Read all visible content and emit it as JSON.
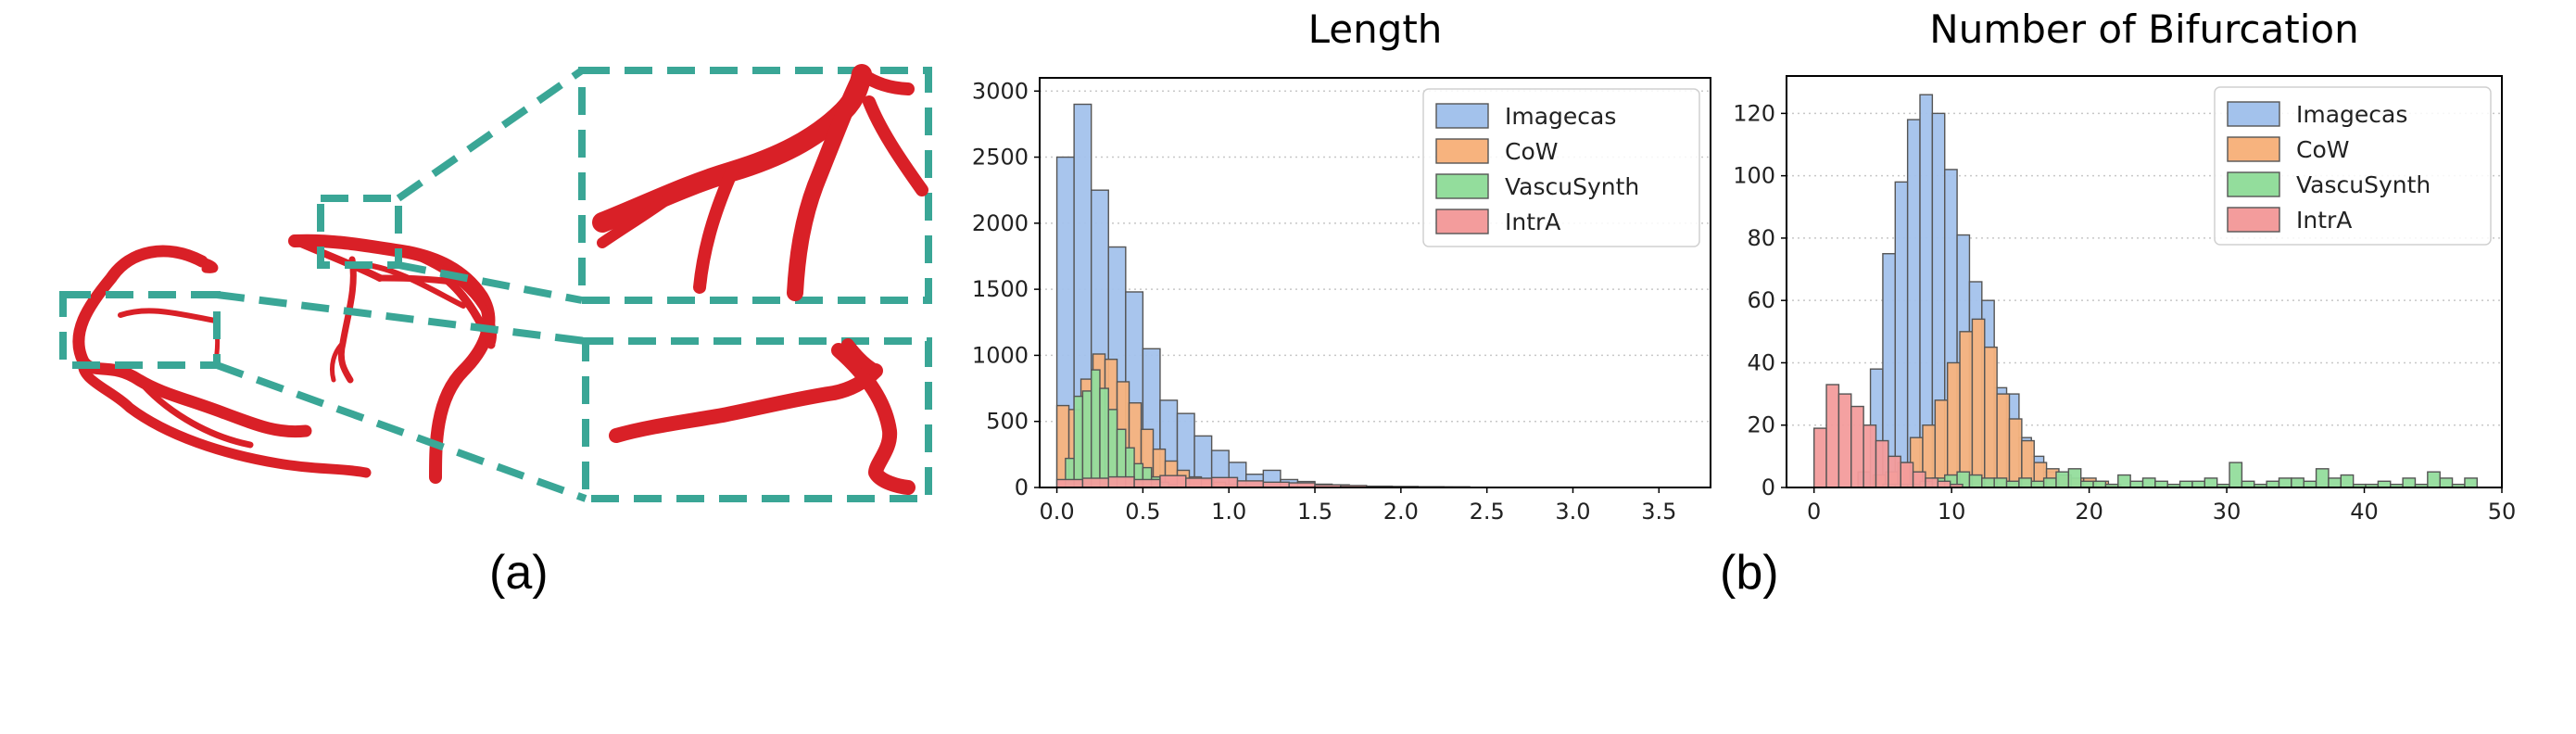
{
  "captions": {
    "a": "(a)",
    "b": "(b)"
  },
  "colors": {
    "vessel": "#d92027",
    "zoom_box": "#3aa696",
    "Imagecas": "#a3c2ec",
    "CoW": "#f7b37e",
    "VascuSynth": "#93dd9c",
    "IntrA": "#f39c9c"
  },
  "chart_data": [
    {
      "type": "histogram",
      "title": "Length",
      "xlim": [
        -0.1,
        3.8
      ],
      "ylim": [
        0,
        3100
      ],
      "xticks": [
        0.0,
        0.5,
        1.0,
        1.5,
        2.0,
        2.5,
        3.0,
        3.5
      ],
      "xtick_labels": [
        "0.0",
        "0.5",
        "1.0",
        "1.5",
        "2.0",
        "2.5",
        "3.0",
        "3.5"
      ],
      "yticks": [
        0,
        500,
        1000,
        1500,
        2000,
        2500,
        3000
      ],
      "ytick_labels": [
        "0",
        "500",
        "1000",
        "1500",
        "2000",
        "2500",
        "3000"
      ],
      "grid": "horizontal-dotted",
      "legend": "top-right",
      "series": [
        {
          "name": "Imagecas",
          "bin_width": 0.1,
          "bins": [
            [
              0.0,
              2500
            ],
            [
              0.1,
              2900
            ],
            [
              0.2,
              2250
            ],
            [
              0.3,
              1820
            ],
            [
              0.4,
              1480
            ],
            [
              0.5,
              1050
            ],
            [
              0.6,
              660
            ],
            [
              0.7,
              560
            ],
            [
              0.8,
              390
            ],
            [
              0.9,
              280
            ],
            [
              1.0,
              190
            ],
            [
              1.1,
              100
            ],
            [
              1.2,
              130
            ],
            [
              1.3,
              60
            ],
            [
              1.4,
              45
            ],
            [
              1.5,
              25
            ],
            [
              1.6,
              20
            ],
            [
              1.7,
              12
            ],
            [
              1.8,
              8
            ],
            [
              1.9,
              6
            ],
            [
              2.0,
              5
            ],
            [
              2.1,
              4
            ],
            [
              2.2,
              3
            ]
          ]
        },
        {
          "name": "CoW",
          "bin_width": 0.07,
          "bins": [
            [
              0.0,
              620
            ],
            [
              0.07,
              590
            ],
            [
              0.14,
              820
            ],
            [
              0.21,
              1010
            ],
            [
              0.28,
              970
            ],
            [
              0.35,
              800
            ],
            [
              0.42,
              640
            ],
            [
              0.49,
              440
            ],
            [
              0.56,
              290
            ],
            [
              0.63,
              200
            ],
            [
              0.7,
              130
            ],
            [
              0.77,
              80
            ],
            [
              0.84,
              60
            ],
            [
              0.91,
              40
            ],
            [
              0.98,
              20
            ],
            [
              1.05,
              15
            ],
            [
              1.12,
              10
            ]
          ]
        },
        {
          "name": "VascuSynth",
          "bin_width": 0.05,
          "bins": [
            [
              0.05,
              220
            ],
            [
              0.1,
              690
            ],
            [
              0.15,
              730
            ],
            [
              0.2,
              890
            ],
            [
              0.25,
              750
            ],
            [
              0.3,
              590
            ],
            [
              0.35,
              440
            ],
            [
              0.4,
              300
            ],
            [
              0.45,
              180
            ],
            [
              0.5,
              150
            ],
            [
              0.55,
              80
            ],
            [
              0.6,
              40
            ],
            [
              0.65,
              20
            ]
          ]
        },
        {
          "name": "IntrA",
          "bin_width": 0.15,
          "bins": [
            [
              0.0,
              60
            ],
            [
              0.15,
              70
            ],
            [
              0.3,
              80
            ],
            [
              0.45,
              60
            ],
            [
              0.6,
              90
            ],
            [
              0.75,
              70
            ],
            [
              0.9,
              75
            ],
            [
              1.05,
              50
            ],
            [
              1.2,
              40
            ],
            [
              1.35,
              35
            ],
            [
              1.5,
              20
            ],
            [
              1.65,
              15
            ],
            [
              1.8,
              10
            ],
            [
              1.95,
              8
            ],
            [
              2.1,
              6
            ],
            [
              2.25,
              5
            ]
          ]
        }
      ]
    },
    {
      "type": "histogram",
      "title": "Number of Bifurcation",
      "xlim": [
        -2,
        50
      ],
      "ylim": [
        0,
        132
      ],
      "xticks": [
        0,
        10,
        20,
        30,
        40,
        50
      ],
      "xtick_labels": [
        "0",
        "10",
        "20",
        "30",
        "40",
        "50"
      ],
      "yticks": [
        0,
        20,
        40,
        60,
        80,
        100,
        120
      ],
      "ytick_labels": [
        "0",
        "20",
        "40",
        "60",
        "80",
        "100",
        "120"
      ],
      "grid": "horizontal-dotted",
      "legend": "top-right",
      "series": [
        {
          "name": "Imagecas",
          "bin_width": 0.9,
          "bins": [
            [
              3.2,
              5
            ],
            [
              4.1,
              38
            ],
            [
              5.0,
              75
            ],
            [
              5.9,
              98
            ],
            [
              6.8,
              118
            ],
            [
              7.7,
              126
            ],
            [
              8.6,
              120
            ],
            [
              9.5,
              102
            ],
            [
              10.4,
              81
            ],
            [
              11.3,
              66
            ],
            [
              12.2,
              60
            ],
            [
              13.1,
              32
            ],
            [
              14.0,
              30
            ],
            [
              14.9,
              16
            ],
            [
              15.8,
              10
            ],
            [
              16.7,
              5
            ],
            [
              17.6,
              3
            ]
          ]
        },
        {
          "name": "CoW",
          "bin_width": 0.9,
          "bins": [
            [
              4.3,
              4
            ],
            [
              5.2,
              5
            ],
            [
              6.1,
              8
            ],
            [
              7.0,
              16
            ],
            [
              7.9,
              20
            ],
            [
              8.8,
              28
            ],
            [
              9.7,
              40
            ],
            [
              10.6,
              50
            ],
            [
              11.5,
              54
            ],
            [
              12.4,
              45
            ],
            [
              13.3,
              30
            ],
            [
              14.2,
              22
            ],
            [
              15.1,
              15
            ],
            [
              16.0,
              8
            ],
            [
              16.9,
              6
            ],
            [
              17.8,
              4
            ],
            [
              18.7,
              3
            ],
            [
              19.6,
              3
            ],
            [
              20.5,
              2
            ],
            [
              21.4,
              1
            ]
          ]
        },
        {
          "name": "VascuSynth",
          "bin_width": 0.9,
          "bins": [
            [
              5.0,
              1
            ],
            [
              5.9,
              1
            ],
            [
              6.8,
              1
            ],
            [
              7.7,
              2
            ],
            [
              8.6,
              3
            ],
            [
              9.5,
              4
            ],
            [
              10.4,
              5
            ],
            [
              11.3,
              4
            ],
            [
              12.2,
              3
            ],
            [
              13.1,
              3
            ],
            [
              14.0,
              2
            ],
            [
              14.9,
              3
            ],
            [
              15.8,
              2
            ],
            [
              16.7,
              3
            ],
            [
              17.6,
              5
            ],
            [
              18.5,
              6
            ],
            [
              19.4,
              2
            ],
            [
              20.3,
              2
            ],
            [
              21.2,
              1
            ],
            [
              22.1,
              4
            ],
            [
              23.0,
              2
            ],
            [
              23.9,
              3
            ],
            [
              24.8,
              2
            ],
            [
              25.7,
              1
            ],
            [
              26.6,
              2
            ],
            [
              27.5,
              2
            ],
            [
              28.4,
              3
            ],
            [
              29.3,
              1
            ],
            [
              30.2,
              8
            ],
            [
              31.1,
              2
            ],
            [
              32.0,
              1
            ],
            [
              32.9,
              2
            ],
            [
              33.8,
              3
            ],
            [
              34.7,
              3
            ],
            [
              35.6,
              2
            ],
            [
              36.5,
              6
            ],
            [
              37.4,
              3
            ],
            [
              38.3,
              4
            ],
            [
              39.2,
              1
            ],
            [
              40.1,
              1
            ],
            [
              41.0,
              2
            ],
            [
              41.9,
              1
            ],
            [
              42.8,
              3
            ],
            [
              43.7,
              1
            ],
            [
              44.6,
              5
            ],
            [
              45.5,
              3
            ],
            [
              46.4,
              1
            ],
            [
              47.3,
              3
            ]
          ]
        },
        {
          "name": "IntrA",
          "bin_width": 0.9,
          "bins": [
            [
              0.0,
              19
            ],
            [
              0.9,
              33
            ],
            [
              1.8,
              30
            ],
            [
              2.7,
              26
            ],
            [
              3.6,
              20
            ],
            [
              4.5,
              15
            ],
            [
              5.4,
              10
            ],
            [
              6.3,
              8
            ],
            [
              7.2,
              5
            ],
            [
              8.1,
              3
            ],
            [
              9.0,
              2
            ],
            [
              9.9,
              1
            ]
          ]
        }
      ]
    }
  ]
}
